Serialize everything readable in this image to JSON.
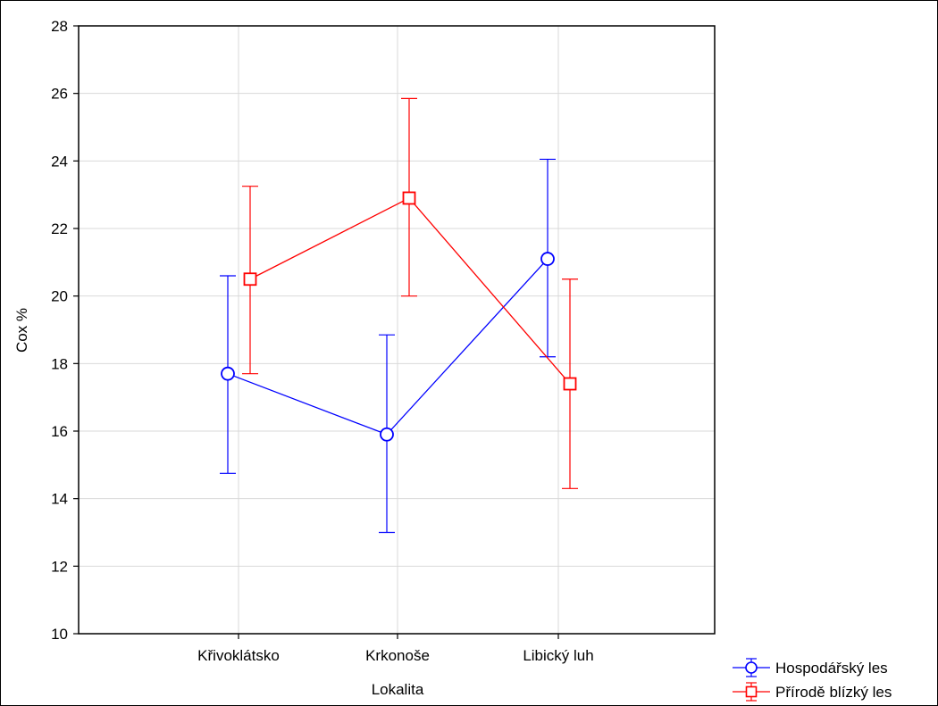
{
  "chart_data": {
    "type": "line",
    "xlabel": "Lokalita",
    "ylabel": "Cox %",
    "categories": [
      "Křivoklátsko",
      "Krkonoše",
      "Libický luh"
    ],
    "ylim": [
      10,
      28
    ],
    "yticks": [
      10,
      12,
      14,
      16,
      18,
      20,
      22,
      24,
      26,
      28
    ],
    "grid": true,
    "legend_position": "bottom-right",
    "series": [
      {
        "name": "Hospodářský les",
        "color": "#0000ff",
        "marker": "circle",
        "values": [
          17.7,
          15.9,
          21.1
        ],
        "lower": [
          14.75,
          13.0,
          18.2
        ],
        "upper": [
          20.6,
          18.85,
          24.05
        ]
      },
      {
        "name": "Přírodě blízký les",
        "color": "#ff0000",
        "marker": "square",
        "values": [
          20.5,
          22.9,
          17.4
        ],
        "lower": [
          17.7,
          20.0,
          14.3
        ],
        "upper": [
          23.25,
          25.85,
          20.5
        ]
      }
    ]
  }
}
